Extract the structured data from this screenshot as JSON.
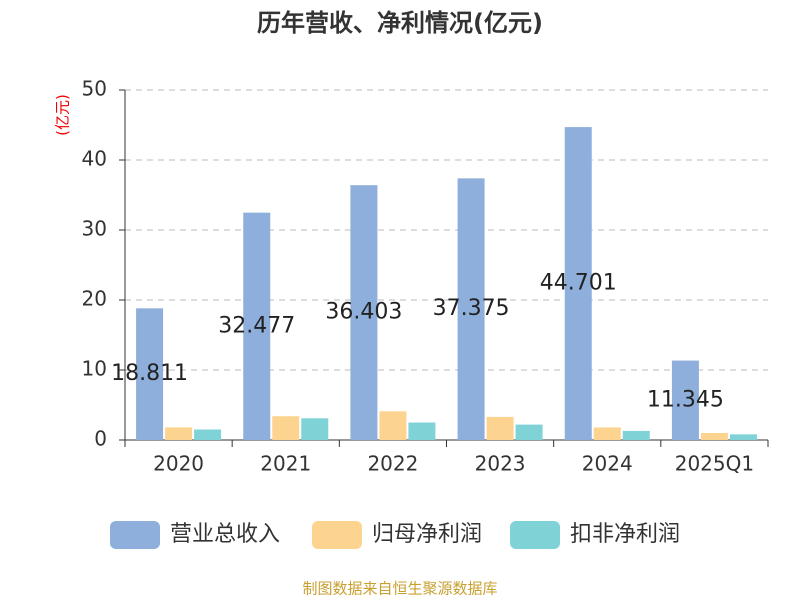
{
  "chart_data": {
    "type": "bar",
    "title": "历年营收、净利情况(亿元)",
    "y_label": "(亿元)",
    "categories": [
      "2020",
      "2021",
      "2022",
      "2023",
      "2024",
      "2025Q1"
    ],
    "series": [
      {
        "name": "营业总收入",
        "color": "#8eaedb",
        "values": [
          18.811,
          32.477,
          36.403,
          37.375,
          44.701,
          11.345
        ],
        "show_labels": true
      },
      {
        "name": "归母净利润",
        "color": "#fdd48f",
        "values": [
          1.8,
          3.4,
          4.1,
          3.3,
          1.8,
          1.0
        ],
        "show_labels": false
      },
      {
        "name": "扣非净利润",
        "color": "#7fd3d6",
        "values": [
          1.5,
          3.1,
          2.5,
          2.2,
          1.3,
          0.8
        ],
        "show_labels": false
      }
    ],
    "ylim": [
      0,
      50
    ],
    "yticks": [
      0,
      10,
      20,
      30,
      40,
      50
    ],
    "grid": true,
    "legend": "bottom",
    "source": "制图数据来自恒生聚源数据库"
  }
}
